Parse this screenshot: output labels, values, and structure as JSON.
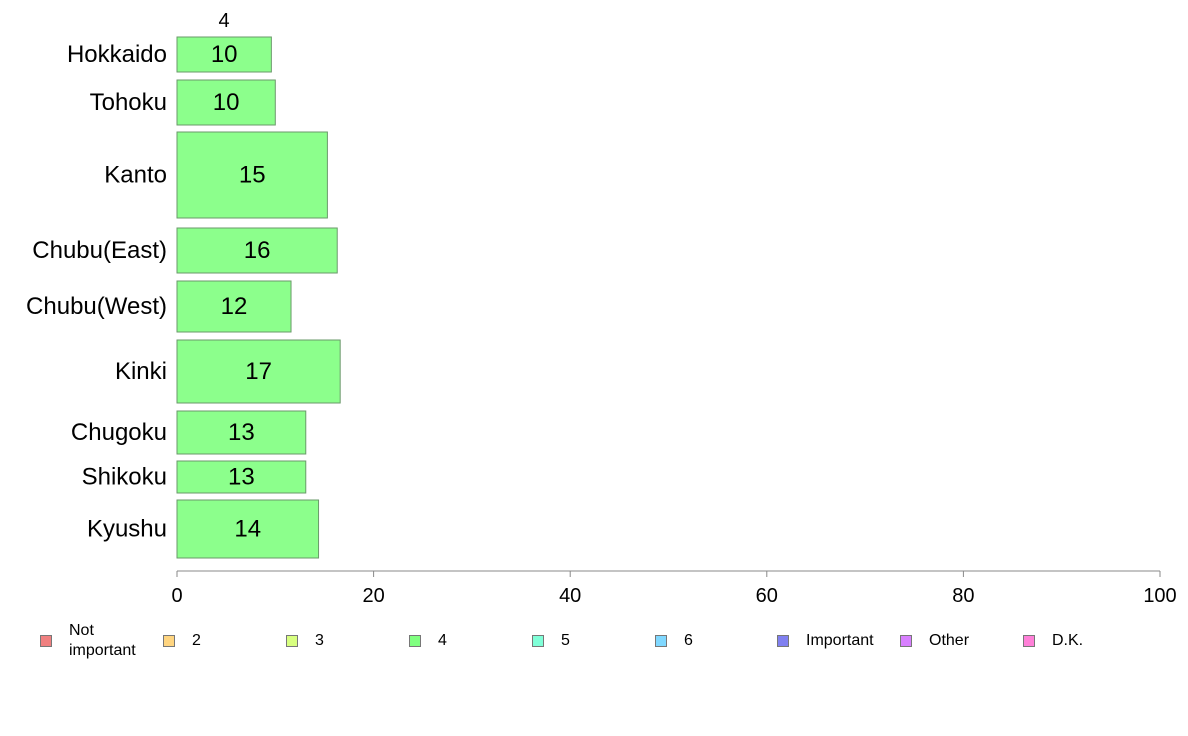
{
  "chart_data": {
    "type": "bar",
    "orientation": "horizontal",
    "stacked": true,
    "categories": [
      "Hokkaido",
      "Tohoku",
      "Kanto",
      "Chubu(East)",
      "Chubu(West)",
      "Kinki",
      "Chugoku",
      "Shikoku",
      "Kyushu"
    ],
    "series": [
      {
        "name": "4",
        "color": "#8cff8c",
        "values": [
          9.6,
          10.0,
          15.3,
          16.3,
          11.6,
          16.6,
          13.1,
          13.1,
          14.4
        ],
        "labels": [
          "10",
          "10",
          "15",
          "16",
          "12",
          "17",
          "13",
          "13",
          "14"
        ]
      }
    ],
    "series_header": "4",
    "xlim": [
      0,
      100
    ],
    "x_ticks": [
      "0",
      "20",
      "40",
      "60",
      "80",
      "100"
    ],
    "grid": false,
    "legend_position": "bottom",
    "legend": [
      {
        "label": "Not\nimportant",
        "color": "#f08080"
      },
      {
        "label": "2",
        "color": "#ffd580"
      },
      {
        "label": "3",
        "color": "#d8ff80"
      },
      {
        "label": "4",
        "color": "#80ff80"
      },
      {
        "label": "5",
        "color": "#80ffd8"
      },
      {
        "label": "6",
        "color": "#80d8ff"
      },
      {
        "label": "Important",
        "color": "#8080f0"
      },
      {
        "label": "Other",
        "color": "#d880ff"
      },
      {
        "label": "D.K.",
        "color": "#ff80d8"
      }
    ]
  }
}
